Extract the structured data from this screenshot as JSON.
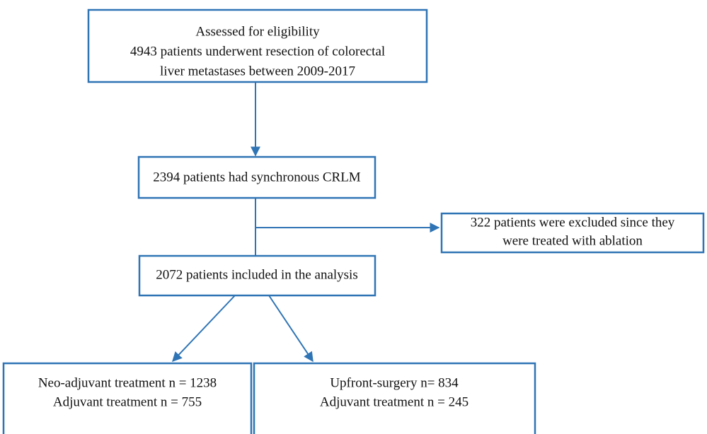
{
  "nodes": [
    {
      "lines": [
        "Assessed for eligibility",
        "4943 patients underwent resection of colorectal",
        "liver metastases between 2009-2017"
      ]
    },
    {
      "lines": [
        "2394 patients had synchronous CRLM"
      ]
    },
    {
      "lines": [
        "322 patients were excluded since they",
        "were treated with ablation"
      ]
    },
    {
      "lines": [
        "2072 patients included in the analysis"
      ]
    },
    {
      "lines": [
        "Neo-adjuvant treatment n = 1238",
        "Adjuvant treatment n = 755"
      ]
    },
    {
      "lines": [
        "Upfront-surgery n= 834",
        "Adjuvant treatment n = 245"
      ]
    }
  ]
}
